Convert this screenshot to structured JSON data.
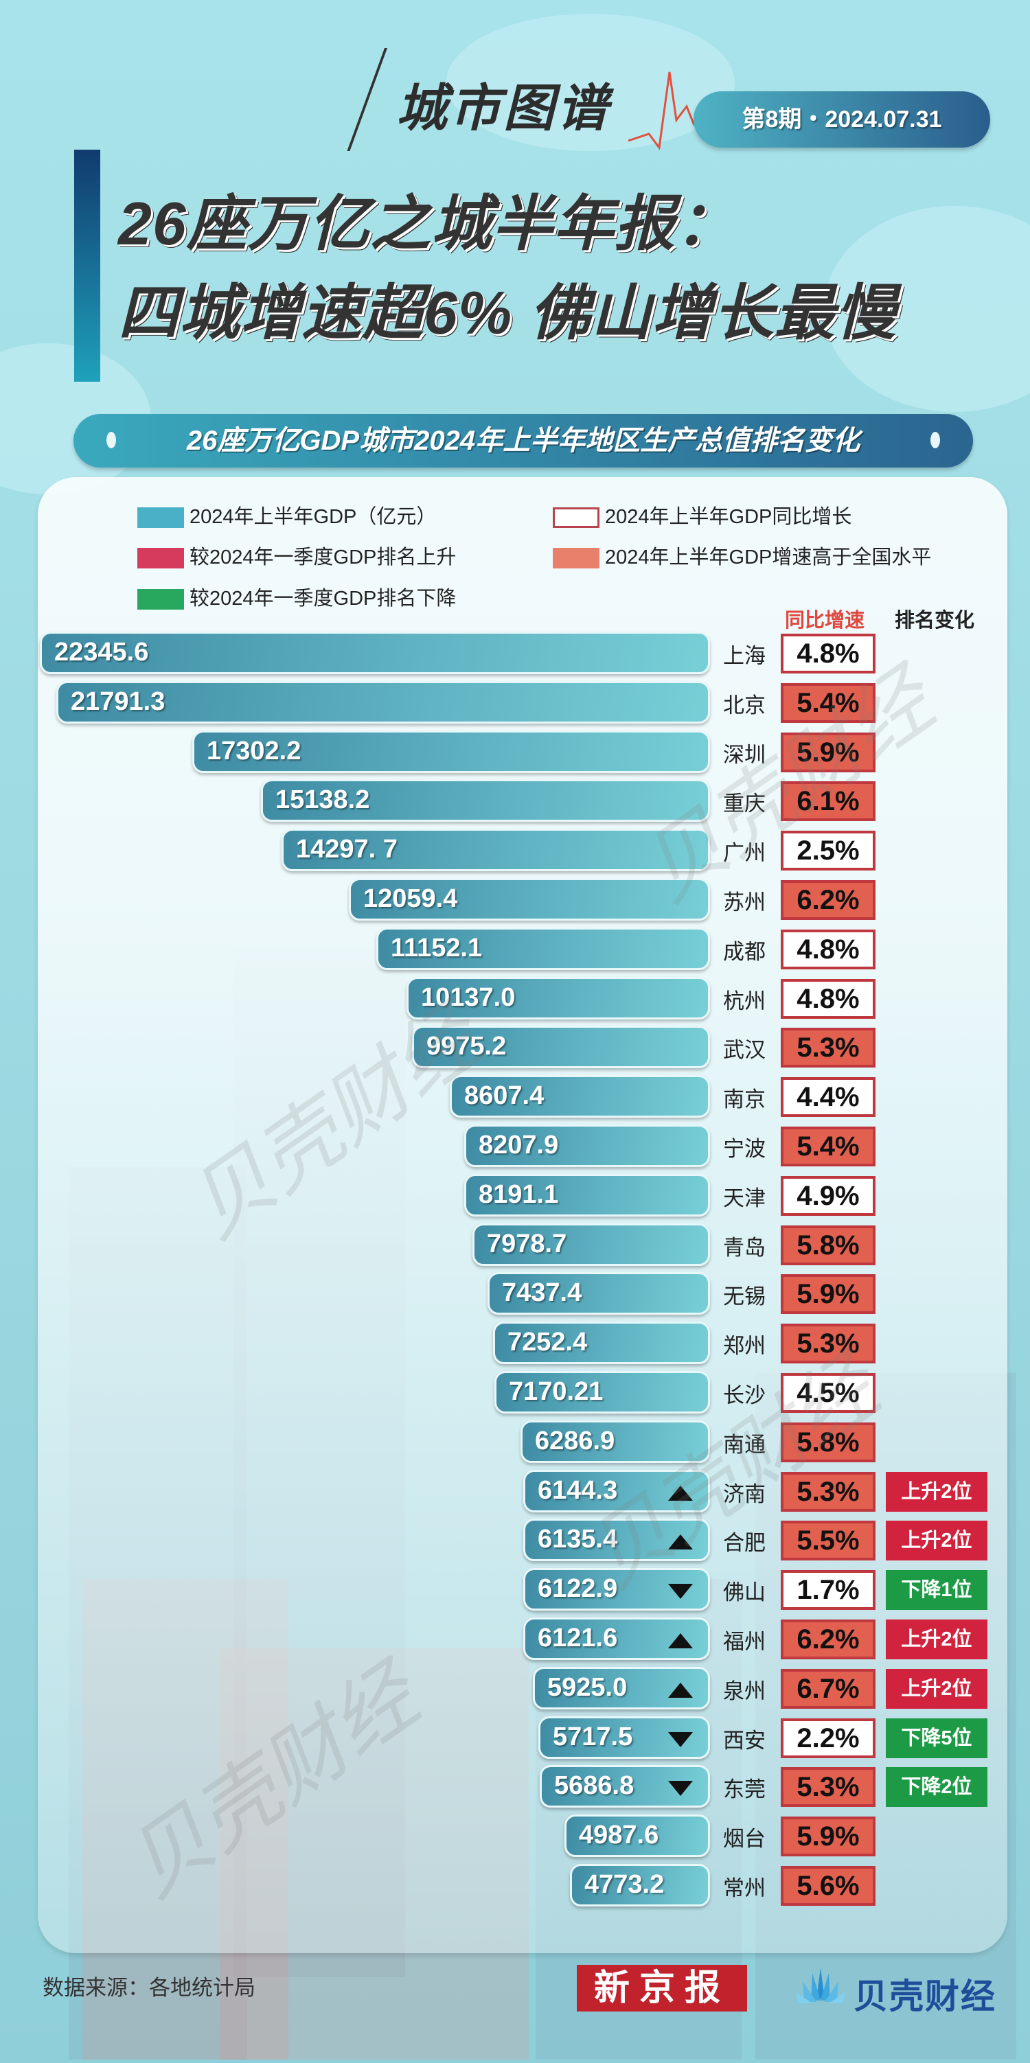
{
  "header": {
    "brand": "城市图谱",
    "issue": "第8期・2024.07.31",
    "title_line1": "26座万亿之城半年报：",
    "title_line2": "四城增速超6% 佛山增长最慢"
  },
  "subtitle": "26座万亿GDP城市2024年上半年地区生产总值排名变化",
  "legend": {
    "gdp": "2024年上半年GDP（亿元）",
    "rank_up": "较2024年一季度GDP排名上升",
    "rank_down": "较2024年一季度GDP排名下降",
    "yoy": "2024年上半年GDP同比增长",
    "above_national": "2024年上半年GDP增速高于全国水平"
  },
  "columns": {
    "growth": "同比增速",
    "rank_change": "排名变化"
  },
  "colors": {
    "bar": "#4fa6ba",
    "rank_up": "#d2233e",
    "rank_down": "#1d9a46",
    "above_national": "#e2604f",
    "yoy_border": "#c0383f"
  },
  "rows": [
    {
      "value": "22345.6",
      "city": "上海",
      "growth": "4.8%",
      "above": false,
      "arrow": "",
      "rank": ""
    },
    {
      "value": "21791.3",
      "city": "北京",
      "growth": "5.4%",
      "above": true,
      "arrow": "",
      "rank": ""
    },
    {
      "value": "17302.2",
      "city": "深圳",
      "growth": "5.9%",
      "above": true,
      "arrow": "",
      "rank": ""
    },
    {
      "value": "15138.2",
      "city": "重庆",
      "growth": "6.1%",
      "above": true,
      "arrow": "",
      "rank": ""
    },
    {
      "value": "14297. 7",
      "city": "广州",
      "growth": "2.5%",
      "above": false,
      "arrow": "",
      "rank": ""
    },
    {
      "value": "12059.4",
      "city": "苏州",
      "growth": "6.2%",
      "above": true,
      "arrow": "",
      "rank": ""
    },
    {
      "value": "11152.1",
      "city": "成都",
      "growth": "4.8%",
      "above": false,
      "arrow": "",
      "rank": ""
    },
    {
      "value": "10137.0",
      "city": "杭州",
      "growth": "4.8%",
      "above": false,
      "arrow": "",
      "rank": ""
    },
    {
      "value": "9975.2",
      "city": "武汉",
      "growth": "5.3%",
      "above": true,
      "arrow": "",
      "rank": ""
    },
    {
      "value": "8607.4",
      "city": "南京",
      "growth": "4.4%",
      "above": false,
      "arrow": "",
      "rank": ""
    },
    {
      "value": "8207.9",
      "city": "宁波",
      "growth": "5.4%",
      "above": true,
      "arrow": "",
      "rank": ""
    },
    {
      "value": "8191.1",
      "city": "天津",
      "growth": "4.9%",
      "above": false,
      "arrow": "",
      "rank": ""
    },
    {
      "value": "7978.7",
      "city": "青岛",
      "growth": "5.8%",
      "above": true,
      "arrow": "",
      "rank": ""
    },
    {
      "value": "7437.4",
      "city": "无锡",
      "growth": "5.9%",
      "above": true,
      "arrow": "",
      "rank": ""
    },
    {
      "value": "7252.4",
      "city": "郑州",
      "growth": "5.3%",
      "above": true,
      "arrow": "",
      "rank": ""
    },
    {
      "value": "7170.21",
      "city": "长沙",
      "growth": "4.5%",
      "above": false,
      "arrow": "",
      "rank": ""
    },
    {
      "value": "6286.9",
      "city": "南通",
      "growth": "5.8%",
      "above": true,
      "arrow": "",
      "rank": ""
    },
    {
      "value": "6144.3",
      "city": "济南",
      "growth": "5.3%",
      "above": true,
      "arrow": "up",
      "rank": "上升2位"
    },
    {
      "value": "6135.4",
      "city": "合肥",
      "growth": "5.5%",
      "above": true,
      "arrow": "up",
      "rank": "上升2位"
    },
    {
      "value": "6122.9",
      "city": "佛山",
      "growth": "1.7%",
      "above": false,
      "arrow": "down",
      "rank": "下降1位"
    },
    {
      "value": "6121.6",
      "city": "福州",
      "growth": "6.2%",
      "above": true,
      "arrow": "up",
      "rank": "上升2位"
    },
    {
      "value": "5925.0",
      "city": "泉州",
      "growth": "6.7%",
      "above": true,
      "arrow": "up",
      "rank": "上升2位"
    },
    {
      "value": "5717.5",
      "city": "西安",
      "growth": "2.2%",
      "above": false,
      "arrow": "down",
      "rank": "下降5位"
    },
    {
      "value": "5686.8",
      "city": "东莞",
      "growth": "5.3%",
      "above": true,
      "arrow": "down",
      "rank": "下降2位"
    },
    {
      "value": "4987.6",
      "city": "烟台",
      "growth": "5.9%",
      "above": true,
      "arrow": "",
      "rank": ""
    },
    {
      "value": "4773.2",
      "city": "常州",
      "growth": "5.6%",
      "above": true,
      "arrow": "",
      "rank": ""
    }
  ],
  "footer": {
    "source": "数据来源：各地统计局",
    "logo1": "新京报",
    "logo2": "贝壳财经"
  },
  "watermark": "贝壳财经",
  "chart_data": {
    "type": "bar",
    "title": "26座万亿GDP城市2024年上半年地区生产总值排名变化",
    "xlabel": "",
    "ylabel": "2024年上半年GDP（亿元）",
    "categories": [
      "上海",
      "北京",
      "深圳",
      "重庆",
      "广州",
      "苏州",
      "成都",
      "杭州",
      "武汉",
      "南京",
      "宁波",
      "天津",
      "青岛",
      "无锡",
      "郑州",
      "长沙",
      "南通",
      "济南",
      "合肥",
      "佛山",
      "福州",
      "泉州",
      "西安",
      "东莞",
      "烟台",
      "常州"
    ],
    "series": [
      {
        "name": "2024年上半年GDP（亿元）",
        "values": [
          22345.6,
          21791.3,
          17302.2,
          15138.2,
          14297.7,
          12059.4,
          11152.1,
          10137.0,
          9975.2,
          8607.4,
          8207.9,
          8191.1,
          7978.7,
          7437.4,
          7252.4,
          7170.21,
          6286.9,
          6144.3,
          6135.4,
          6122.9,
          6121.6,
          5925.0,
          5717.5,
          5686.8,
          4987.6,
          4773.2
        ]
      },
      {
        "name": "2024年上半年GDP同比增长(%)",
        "values": [
          4.8,
          5.4,
          5.9,
          6.1,
          2.5,
          6.2,
          4.8,
          4.8,
          5.3,
          4.4,
          5.4,
          4.9,
          5.8,
          5.9,
          5.3,
          4.5,
          5.8,
          5.3,
          5.5,
          1.7,
          6.2,
          6.7,
          2.2,
          5.3,
          5.9,
          5.6
        ]
      }
    ],
    "rank_change": {
      "济南": "上升2位",
      "合肥": "上升2位",
      "佛山": "下降1位",
      "福州": "上升2位",
      "泉州": "上升2位",
      "西安": "下降5位",
      "东莞": "下降2位"
    },
    "legend": [
      "2024年上半年GDP（亿元）",
      "较2024年一季度GDP排名上升",
      "较2024年一季度GDP排名下降",
      "2024年上半年GDP同比增长",
      "2024年上半年GDP增速高于全国水平"
    ],
    "orientation": "horizontal",
    "legend_position": "top"
  }
}
